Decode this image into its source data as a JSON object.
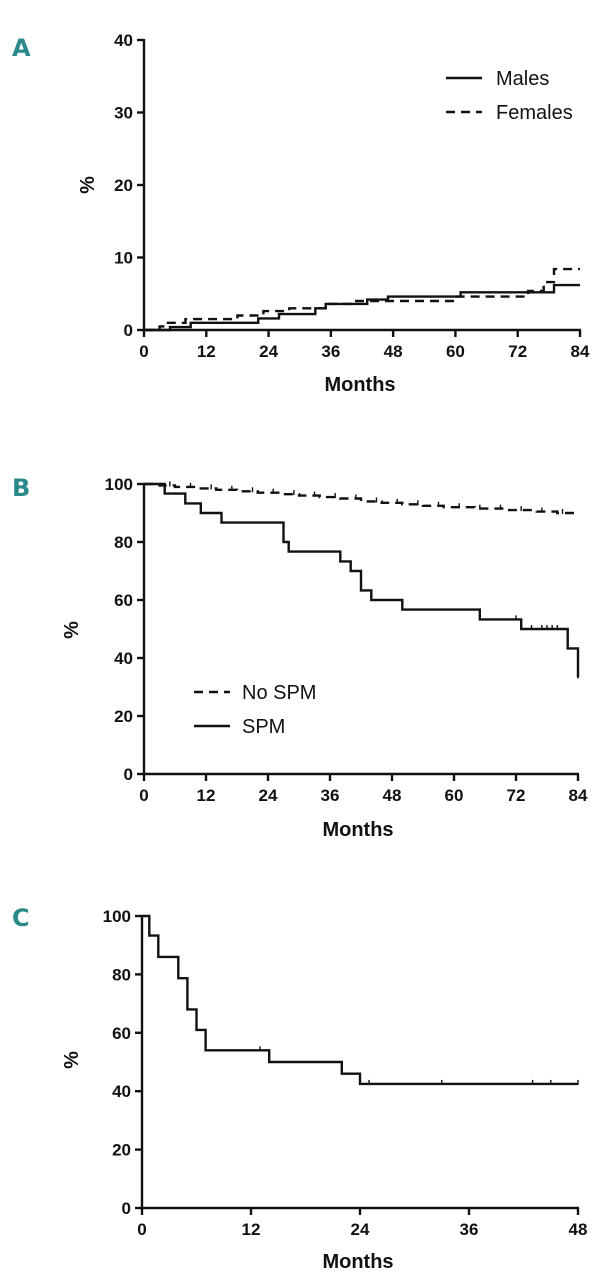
{
  "chart_data": [
    {
      "type": "line",
      "panel": "A",
      "xlabel": "Months",
      "ylabel": "%",
      "xlim": [
        0,
        84
      ],
      "ylim": [
        0,
        40
      ],
      "xticks": [
        0,
        12,
        24,
        36,
        48,
        60,
        72,
        84
      ],
      "yticks": [
        0,
        10,
        20,
        30,
        40
      ],
      "legend_position": "top-right",
      "series": [
        {
          "name": "Males",
          "style": "solid",
          "step": true,
          "points": [
            [
              0,
              0
            ],
            [
              5,
              0
            ],
            [
              5,
              0.4
            ],
            [
              9,
              0.4
            ],
            [
              9,
              1.0
            ],
            [
              22,
              1.0
            ],
            [
              22,
              1.6
            ],
            [
              26,
              1.6
            ],
            [
              26,
              2.2
            ],
            [
              33,
              2.2
            ],
            [
              33,
              3.0
            ],
            [
              35,
              3.0
            ],
            [
              35,
              3.6
            ],
            [
              43,
              3.6
            ],
            [
              43,
              4.2
            ],
            [
              47,
              4.2
            ],
            [
              47,
              4.6
            ],
            [
              61,
              4.6
            ],
            [
              61,
              5.2
            ],
            [
              79,
              5.2
            ],
            [
              79,
              6.2
            ],
            [
              84,
              6.2
            ]
          ]
        },
        {
          "name": "Females",
          "style": "dashed",
          "step": true,
          "points": [
            [
              0,
              0
            ],
            [
              3,
              0
            ],
            [
              3,
              0.5
            ],
            [
              4,
              0.5
            ],
            [
              4,
              1.0
            ],
            [
              8,
              1.0
            ],
            [
              8,
              1.5
            ],
            [
              18,
              1.5
            ],
            [
              18,
              2.0
            ],
            [
              23,
              2.0
            ],
            [
              23,
              2.6
            ],
            [
              28,
              2.6
            ],
            [
              28,
              3.0
            ],
            [
              35,
              3.0
            ],
            [
              35,
              3.6
            ],
            [
              40,
              3.6
            ],
            [
              40,
              4.0
            ],
            [
              60,
              4.0
            ],
            [
              60,
              4.6
            ],
            [
              74,
              4.6
            ],
            [
              74,
              5.4
            ],
            [
              77,
              5.4
            ],
            [
              77,
              6.6
            ],
            [
              79,
              6.6
            ],
            [
              79,
              8.4
            ],
            [
              84,
              8.4
            ]
          ]
        }
      ]
    },
    {
      "type": "line",
      "panel": "B",
      "xlabel": "Months",
      "ylabel": "%",
      "xlim": [
        0,
        84
      ],
      "ylim": [
        0,
        100
      ],
      "xticks": [
        0,
        12,
        24,
        36,
        48,
        60,
        72,
        84
      ],
      "yticks": [
        0,
        20,
        40,
        60,
        80,
        100
      ],
      "legend_position": "bottom-left",
      "series": [
        {
          "name": "No SPM",
          "style": "dashed",
          "step": true,
          "points": [
            [
              0,
              100
            ],
            [
              3,
              100
            ],
            [
              3,
              99.5
            ],
            [
              6,
              99.5
            ],
            [
              6,
              99
            ],
            [
              10,
              99
            ],
            [
              10,
              98.5
            ],
            [
              14,
              98.5
            ],
            [
              14,
              98
            ],
            [
              18,
              98
            ],
            [
              18,
              97.5
            ],
            [
              22,
              97.5
            ],
            [
              22,
              97
            ],
            [
              26,
              97
            ],
            [
              26,
              96.5
            ],
            [
              30,
              96.5
            ],
            [
              30,
              96
            ],
            [
              34,
              96
            ],
            [
              34,
              95.5
            ],
            [
              38,
              95.5
            ],
            [
              38,
              95
            ],
            [
              42,
              95
            ],
            [
              42,
              94
            ],
            [
              46,
              94
            ],
            [
              46,
              93.5
            ],
            [
              50,
              93.5
            ],
            [
              50,
              93
            ],
            [
              54,
              93
            ],
            [
              54,
              92.5
            ],
            [
              58,
              92.5
            ],
            [
              58,
              92
            ],
            [
              64,
              92
            ],
            [
              64,
              91.5
            ],
            [
              70,
              91.5
            ],
            [
              70,
              91
            ],
            [
              76,
              91
            ],
            [
              76,
              90.5
            ],
            [
              80,
              90.5
            ],
            [
              80,
              90
            ],
            [
              84,
              90
            ]
          ],
          "censored": [
            5,
            9,
            13,
            17,
            21,
            25,
            29,
            33,
            37,
            41,
            45,
            49,
            53,
            57,
            61,
            65,
            69,
            73,
            77,
            81
          ]
        },
        {
          "name": "SPM",
          "style": "solid",
          "step": true,
          "points": [
            [
              0,
              100
            ],
            [
              4,
              100
            ],
            [
              4,
              96.7
            ],
            [
              8,
              96.7
            ],
            [
              8,
              93.3
            ],
            [
              11,
              93.3
            ],
            [
              11,
              90
            ],
            [
              15,
              90
            ],
            [
              15,
              86.7
            ],
            [
              27,
              86.7
            ],
            [
              27,
              80
            ],
            [
              28,
              80
            ],
            [
              28,
              76.7
            ],
            [
              38,
              76.7
            ],
            [
              38,
              73.3
            ],
            [
              40,
              73.3
            ],
            [
              40,
              70
            ],
            [
              42,
              70
            ],
            [
              42,
              63.3
            ],
            [
              44,
              63.3
            ],
            [
              44,
              60
            ],
            [
              50,
              60
            ],
            [
              50,
              56.7
            ],
            [
              65,
              56.7
            ],
            [
              65,
              53.3
            ],
            [
              73,
              53.3
            ],
            [
              73,
              50
            ],
            [
              82,
              50
            ],
            [
              82,
              43.3
            ],
            [
              84,
              43.3
            ],
            [
              84,
              33.3
            ]
          ],
          "censored": [
            28,
            72,
            75,
            77,
            78,
            79,
            80,
            84
          ]
        }
      ]
    },
    {
      "type": "line",
      "panel": "C",
      "xlabel": "Months",
      "ylabel": "%",
      "xlim": [
        0,
        48
      ],
      "ylim": [
        0,
        100
      ],
      "xticks": [
        0,
        12,
        24,
        36,
        48
      ],
      "yticks": [
        0,
        20,
        40,
        60,
        80,
        100
      ],
      "series": [
        {
          "style": "solid",
          "step": true,
          "points": [
            [
              0,
              100
            ],
            [
              0.8,
              100
            ],
            [
              0.8,
              93.3
            ],
            [
              1.8,
              93.3
            ],
            [
              1.8,
              86
            ],
            [
              4,
              86
            ],
            [
              4,
              78.7
            ],
            [
              5,
              78.7
            ],
            [
              5,
              68
            ],
            [
              6,
              68
            ],
            [
              6,
              61
            ],
            [
              7,
              61
            ],
            [
              7,
              54
            ],
            [
              14,
              54
            ],
            [
              14,
              50
            ],
            [
              22,
              50
            ],
            [
              22,
              46
            ],
            [
              24,
              46
            ],
            [
              24,
              42.5
            ],
            [
              48,
              42.5
            ]
          ],
          "censored": [
            13,
            25,
            33,
            43,
            45,
            48
          ]
        }
      ]
    }
  ]
}
